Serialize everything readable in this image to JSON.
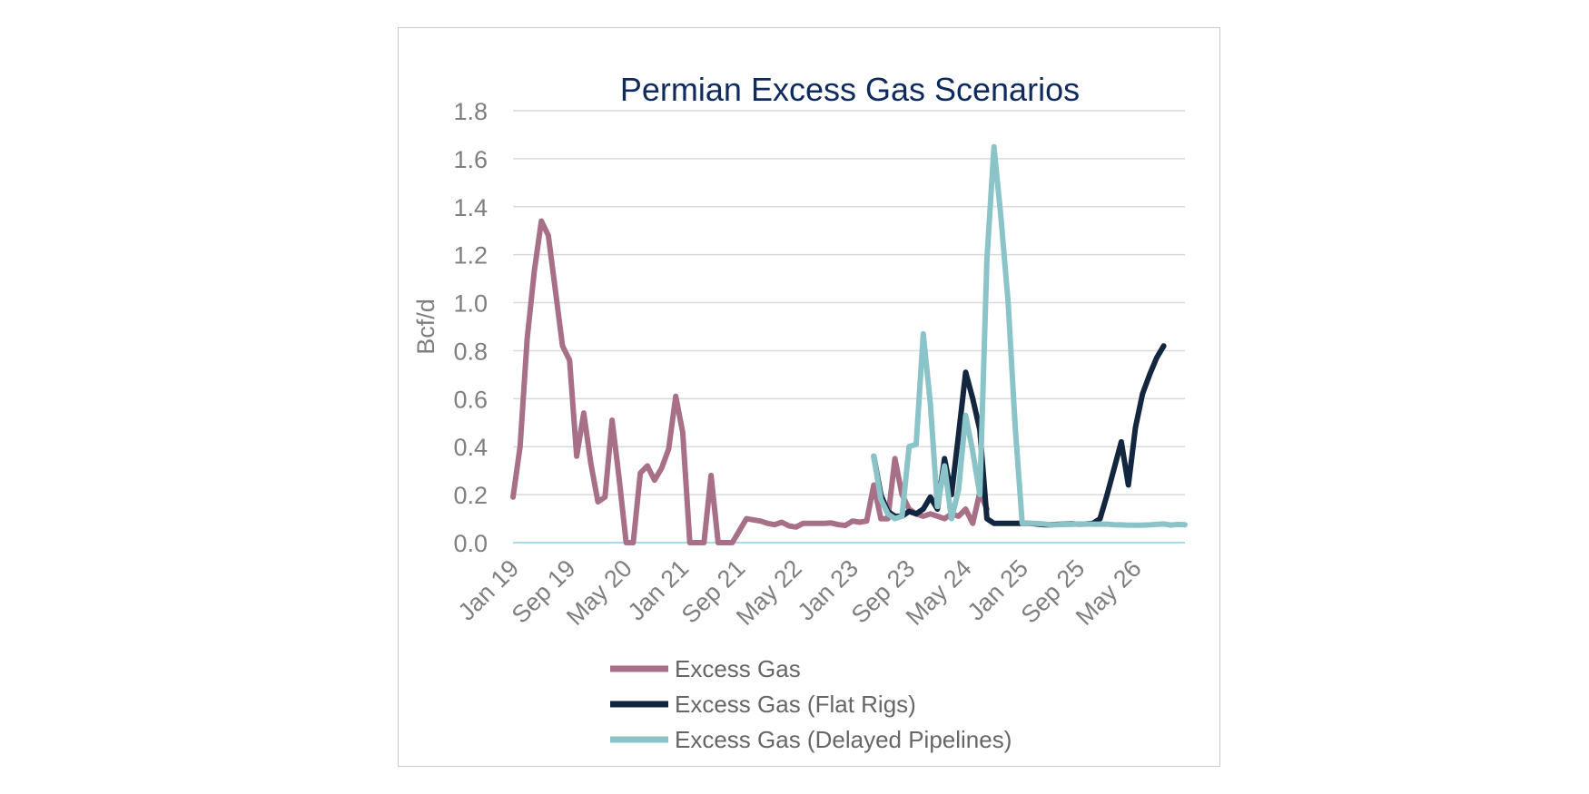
{
  "chart_data": {
    "type": "line",
    "title": "Permian Excess Gas Scenarios",
    "ylabel": "Bcf/d",
    "xlabel": "",
    "ylim": [
      0,
      1.8
    ],
    "yticks": [
      "0.0",
      "0.2",
      "0.4",
      "0.6",
      "0.8",
      "1.0",
      "1.2",
      "1.4",
      "1.6",
      "1.8"
    ],
    "xticks": [
      "Jan 19",
      "Sep 19",
      "May 20",
      "Jan 21",
      "Sep 21",
      "May 22",
      "Jan 23",
      "Sep 23",
      "May 24",
      "Jan 25",
      "Sep 25",
      "May 26"
    ],
    "x_range": [
      "Jan 19",
      "Dec 26"
    ],
    "grid": true,
    "legend_position": "bottom",
    "colors": {
      "excess": "#a86f88",
      "flat": "#13263f",
      "delayed": "#8ac4c8",
      "grid": "#d9d9d9",
      "zero": "#a9dbea"
    },
    "series": [
      {
        "name": "Excess Gas",
        "color_key": "excess",
        "x": [
          "Jan 19",
          "Feb 19",
          "Mar 19",
          "Apr 19",
          "May 19",
          "Jun 19",
          "Jul 19",
          "Aug 19",
          "Sep 19",
          "Oct 19",
          "Nov 19",
          "Dec 19",
          "Jan 20",
          "Feb 20",
          "Mar 20",
          "Apr 20",
          "May 20",
          "Jun 20",
          "Jul 20",
          "Aug 20",
          "Sep 20",
          "Oct 20",
          "Nov 20",
          "Dec 20",
          "Jan 21",
          "Feb 21",
          "Mar 21",
          "Apr 21",
          "May 21",
          "Jun 21",
          "Jul 21",
          "Aug 21",
          "Sep 21",
          "Oct 21",
          "Nov 21",
          "Dec 21",
          "Jan 22",
          "Feb 22",
          "Mar 22",
          "Apr 22",
          "May 22",
          "Jun 22",
          "Jul 22",
          "Aug 22",
          "Sep 22",
          "Oct 22",
          "Nov 22",
          "Dec 22",
          "Jan 23",
          "Feb 23",
          "Mar 23",
          "Apr 23",
          "May 23",
          "Jun 23",
          "Jul 23",
          "Aug 23",
          "Sep 23",
          "Oct 23",
          "Nov 23",
          "Dec 23",
          "Jan 24",
          "Feb 24",
          "Mar 24",
          "Apr 24",
          "May 24",
          "Jun 24",
          "Jul 24",
          "Aug 24"
        ],
        "values": [
          0.19,
          0.4,
          0.85,
          1.13,
          1.34,
          1.28,
          1.05,
          0.82,
          0.76,
          0.36,
          0.54,
          0.33,
          0.17,
          0.19,
          0.51,
          0.27,
          0.0,
          0.0,
          0.29,
          0.32,
          0.26,
          0.31,
          0.39,
          0.61,
          0.46,
          0.0,
          0.0,
          0.0,
          0.28,
          0.0,
          0.0,
          0.0,
          0.05,
          0.1,
          0.095,
          0.09,
          0.08,
          0.075,
          0.085,
          0.07,
          0.065,
          0.08,
          0.08,
          0.08,
          0.08,
          0.082,
          0.075,
          0.072,
          0.09,
          0.085,
          0.09,
          0.24,
          0.1,
          0.1,
          0.35,
          0.2,
          0.14,
          0.12,
          0.11,
          0.12,
          0.11,
          0.1,
          0.12,
          0.11,
          0.14,
          0.08,
          0.21,
          0.14
        ]
      },
      {
        "name": "Excess Gas (Flat Rigs)",
        "color_key": "flat",
        "x": [
          "Apr 23",
          "May 23",
          "Jun 23",
          "Jul 23",
          "Aug 23",
          "Sep 23",
          "Oct 23",
          "Nov 23",
          "Dec 23",
          "Jan 24",
          "Feb 24",
          "Mar 24",
          "Apr 24",
          "May 24",
          "Jun 24",
          "Jul 24",
          "Aug 24",
          "Sep 24",
          "Oct 24",
          "Nov 24",
          "Dec 24",
          "Jan 25",
          "Feb 25",
          "Mar 25",
          "Apr 25",
          "May 25",
          "Jun 25",
          "Jul 25",
          "Aug 25",
          "Sep 25",
          "Oct 25",
          "Nov 25",
          "Dec 25",
          "Jan 26",
          "Feb 26",
          "Mar 26",
          "Apr 26",
          "May 26",
          "Jun 26",
          "Jul 26",
          "Aug 26",
          "Sep 26"
        ],
        "values": [
          0.36,
          0.2,
          0.13,
          0.11,
          0.11,
          0.13,
          0.12,
          0.14,
          0.19,
          0.14,
          0.35,
          0.2,
          0.45,
          0.71,
          0.6,
          0.47,
          0.1,
          0.08,
          0.08,
          0.08,
          0.08,
          0.08,
          0.08,
          0.078,
          0.075,
          0.075,
          0.076,
          0.077,
          0.078,
          0.077,
          0.078,
          0.08,
          0.1,
          0.2,
          0.31,
          0.42,
          0.24,
          0.48,
          0.62,
          0.7,
          0.77,
          0.82
        ]
      },
      {
        "name": "Excess Gas (Delayed Pipelines)",
        "color_key": "delayed",
        "x": [
          "Apr 23",
          "May 23",
          "Jun 23",
          "Jul 23",
          "Aug 23",
          "Sep 23",
          "Oct 23",
          "Nov 23",
          "Dec 23",
          "Jan 24",
          "Feb 24",
          "Mar 24",
          "Apr 24",
          "May 24",
          "Jun 24",
          "Jul 24",
          "Aug 24",
          "Sep 24",
          "Oct 24",
          "Nov 24",
          "Dec 24",
          "Jan 25",
          "Feb 25",
          "Mar 25",
          "Apr 25",
          "May 25",
          "Jun 25",
          "Jul 25",
          "Aug 25",
          "Sep 25",
          "Oct 25",
          "Nov 25",
          "Dec 25",
          "Jan 26",
          "Feb 26",
          "Mar 26",
          "Apr 26",
          "May 26",
          "Jun 26",
          "Jul 26",
          "Aug 26",
          "Sep 26",
          "Oct 26",
          "Nov 26",
          "Dec 26"
        ],
        "values": [
          0.36,
          0.18,
          0.12,
          0.1,
          0.11,
          0.4,
          0.41,
          0.87,
          0.58,
          0.15,
          0.32,
          0.1,
          0.22,
          0.53,
          0.38,
          0.2,
          1.18,
          1.65,
          1.35,
          1.0,
          0.48,
          0.08,
          0.08,
          0.08,
          0.078,
          0.075,
          0.075,
          0.076,
          0.076,
          0.078,
          0.078,
          0.077,
          0.077,
          0.077,
          0.075,
          0.074,
          0.073,
          0.073,
          0.073,
          0.074,
          0.076,
          0.078,
          0.073,
          0.076,
          0.075
        ]
      }
    ]
  }
}
